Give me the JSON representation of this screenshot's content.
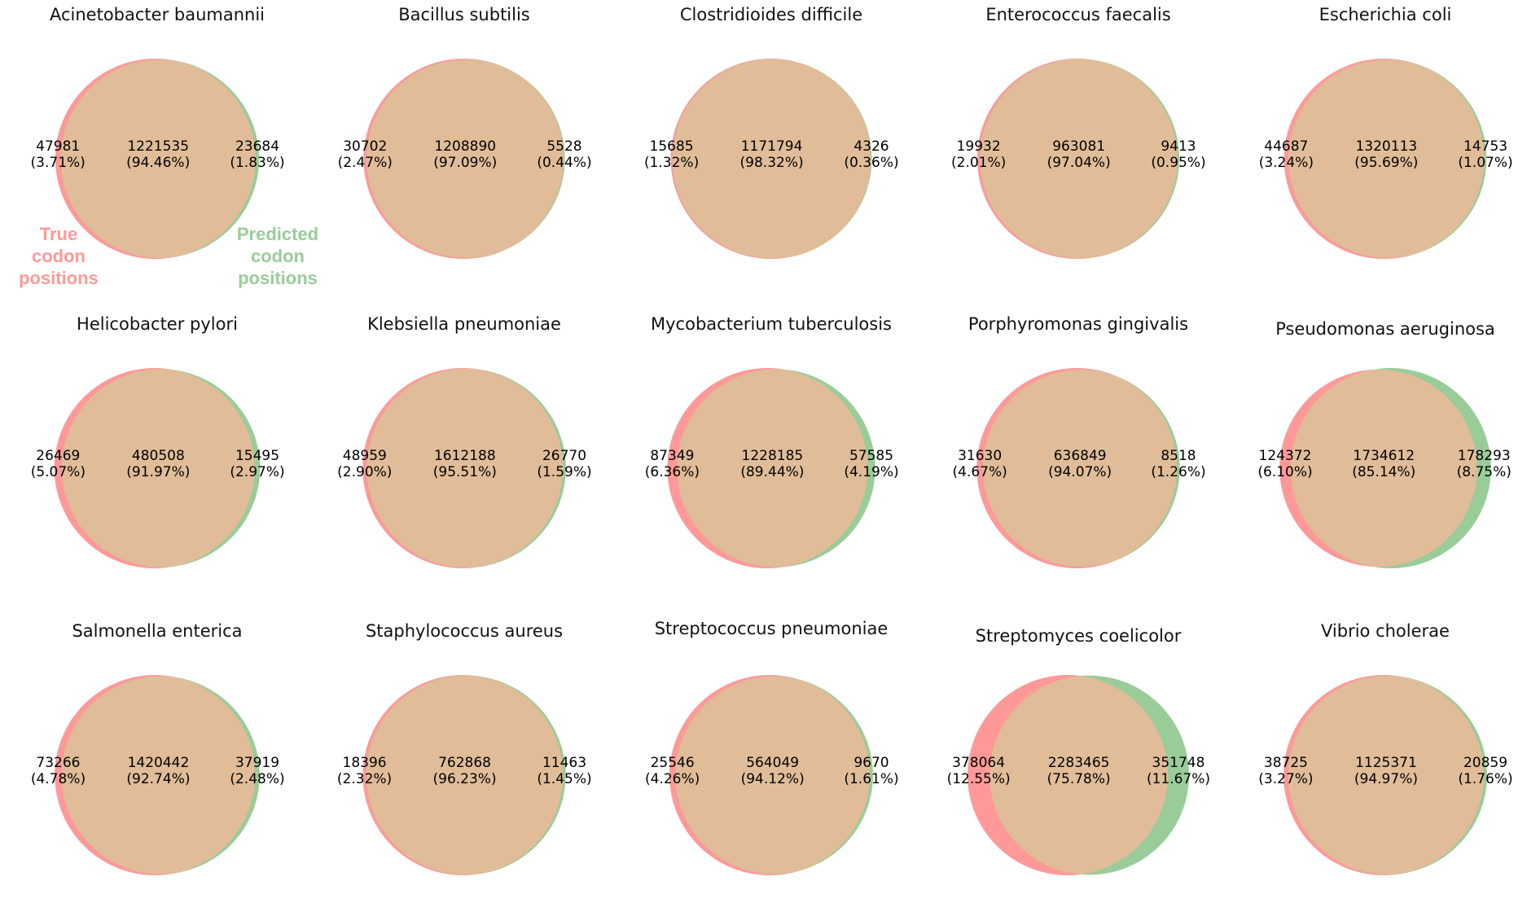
{
  "colors": {
    "true_set": "#ff9999",
    "predicted_set": "#99cc99",
    "overlap": "#e0bc98"
  },
  "legend": {
    "true_label": [
      "True",
      "codon",
      "positions"
    ],
    "predicted_label": [
      "Predicted",
      "codon",
      "positions"
    ]
  },
  "chart_data": {
    "type": "venn",
    "sets": [
      "True codon positions",
      "Predicted codon positions"
    ],
    "panels": [
      {
        "title": "Acinetobacter baumannii",
        "left": "47981",
        "left_pct": "(3.71%)",
        "both": "1221535",
        "both_pct": "(94.46%)",
        "right": "23684",
        "right_pct": "(1.83%)"
      },
      {
        "title": "Bacillus subtilis",
        "left": "30702",
        "left_pct": "(2.47%)",
        "both": "1208890",
        "both_pct": "(97.09%)",
        "right": "5528",
        "right_pct": "(0.44%)"
      },
      {
        "title": "Clostridioides difficile",
        "left": "15685",
        "left_pct": "(1.32%)",
        "both": "1171794",
        "both_pct": "(98.32%)",
        "right": "4326",
        "right_pct": "(0.36%)"
      },
      {
        "title": "Enterococcus faecalis",
        "left": "19932",
        "left_pct": "(2.01%)",
        "both": "963081",
        "both_pct": "(97.04%)",
        "right": "9413",
        "right_pct": "(0.95%)"
      },
      {
        "title": "Escherichia coli",
        "left": "44687",
        "left_pct": "(3.24%)",
        "both": "1320113",
        "both_pct": "(95.69%)",
        "right": "14753",
        "right_pct": "(1.07%)"
      },
      {
        "title": "Helicobacter pylori",
        "left": "26469",
        "left_pct": "(5.07%)",
        "both": "480508",
        "both_pct": "(91.97%)",
        "right": "15495",
        "right_pct": "(2.97%)"
      },
      {
        "title": "Klebsiella pneumoniae",
        "left": "48959",
        "left_pct": "(2.90%)",
        "both": "1612188",
        "both_pct": "(95.51%)",
        "right": "26770",
        "right_pct": "(1.59%)"
      },
      {
        "title": "Mycobacterium tuberculosis",
        "left": "87349",
        "left_pct": "(6.36%)",
        "both": "1228185",
        "both_pct": "(89.44%)",
        "right": "57585",
        "right_pct": "(4.19%)"
      },
      {
        "title": "Porphyromonas gingivalis",
        "left": "31630",
        "left_pct": "(4.67%)",
        "both": "636849",
        "both_pct": "(94.07%)",
        "right": "8518",
        "right_pct": "(1.26%)"
      },
      {
        "title": "Pseudomonas aeruginosa",
        "left": "124372",
        "left_pct": "(6.10%)",
        "both": "1734612",
        "both_pct": "(85.14%)",
        "right": "178293",
        "right_pct": "(8.75%)"
      },
      {
        "title": "Salmonella enterica",
        "left": "73266",
        "left_pct": "(4.78%)",
        "both": "1420442",
        "both_pct": "(92.74%)",
        "right": "37919",
        "right_pct": "(2.48%)"
      },
      {
        "title": "Staphylococcus aureus",
        "left": "18396",
        "left_pct": "(2.32%)",
        "both": "762868",
        "both_pct": "(96.23%)",
        "right": "11463",
        "right_pct": "(1.45%)"
      },
      {
        "title": "Streptococcus pneumoniae",
        "left": "25546",
        "left_pct": "(4.26%)",
        "both": "564049",
        "both_pct": "(94.12%)",
        "right": "9670",
        "right_pct": "(1.61%)"
      },
      {
        "title": "Streptomyces coelicolor",
        "left": "378064",
        "left_pct": "(12.55%)",
        "both": "2283465",
        "both_pct": "(75.78%)",
        "right": "351748",
        "right_pct": "(11.67%)"
      },
      {
        "title": "Vibrio cholerae",
        "left": "38725",
        "left_pct": "(3.27%)",
        "both": "1125371",
        "both_pct": "(94.97%)",
        "right": "20859",
        "right_pct": "(1.76%)"
      }
    ]
  }
}
